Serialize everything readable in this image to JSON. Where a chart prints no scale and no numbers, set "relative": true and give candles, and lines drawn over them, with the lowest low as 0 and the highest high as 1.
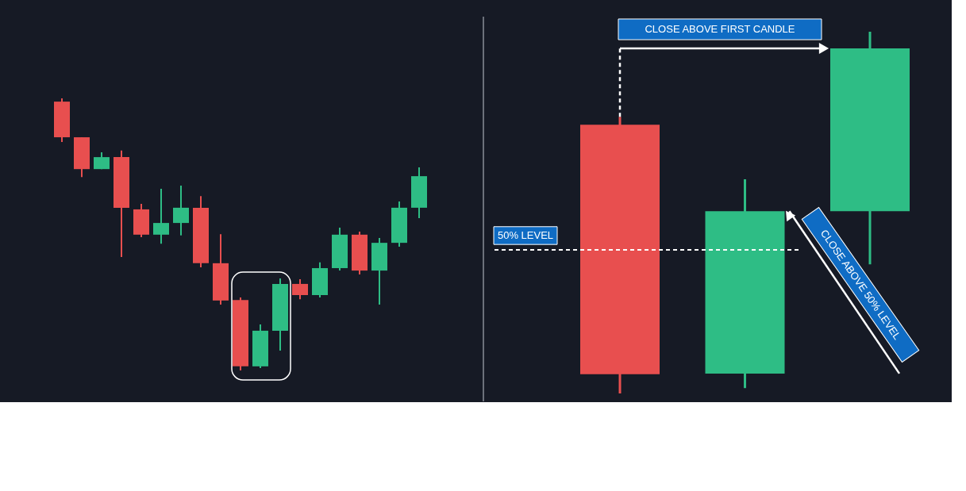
{
  "chart_data": [
    {
      "type": "candlestick",
      "relative": true,
      "categories": [
        null,
        null,
        null,
        null,
        null,
        null,
        null,
        null,
        null,
        null,
        null,
        null,
        null,
        null,
        null,
        null,
        null,
        null,
        null
      ],
      "ohlc": [
        [
          0.988,
          1,
          0.84,
          0.857
        ],
        [
          0.857,
          0.857,
          0.711,
          0.74
        ],
        [
          0.74,
          0.802,
          0.74,
          0.784
        ],
        [
          0.784,
          0.808,
          0.417,
          0.598
        ],
        [
          0.592,
          0.612,
          0.49,
          0.499
        ],
        [
          0.499,
          0.668,
          0.466,
          0.542
        ],
        [
          0.542,
          0.679,
          0.496,
          0.598
        ],
        [
          0.598,
          0.641,
          0.379,
          0.394
        ],
        [
          0.394,
          0.501,
          0.242,
          0.257
        ],
        [
          0.259,
          0.268,
          0,
          0.015
        ],
        [
          0.015,
          0.169,
          0.009,
          0.146
        ],
        [
          0.146,
          0.338,
          0.073,
          0.318
        ],
        [
          0.318,
          0.335,
          0.262,
          0.277
        ],
        [
          0.277,
          0.397,
          0.268,
          0.376
        ],
        [
          0.376,
          0.525,
          0.367,
          0.499
        ],
        [
          0.499,
          0.51,
          0.353,
          0.367
        ],
        [
          0.367,
          0.487,
          0.242,
          0.469
        ],
        [
          0.469,
          0.621,
          0.455,
          0.598
        ],
        [
          0.598,
          0.746,
          0.56,
          0.714
        ]
      ],
      "colors": [
        "#e84f4f",
        "#e84f4f",
        "#2ebd85",
        "#e84f4f",
        "#e84f4f",
        "#2ebd85",
        "#2ebd85",
        "#e84f4f",
        "#e84f4f",
        "#e84f4f",
        "#2ebd85",
        "#2ebd85",
        "#e84f4f",
        "#2ebd85",
        "#2ebd85",
        "#e84f4f",
        "#2ebd85",
        "#2ebd85",
        "#2ebd85"
      ]
    },
    {
      "type": "candlestick",
      "relative": true,
      "categories": [
        null,
        null,
        null
      ],
      "ohlc": [
        [
          0.743,
          0.765,
          0,
          0.053
        ],
        [
          0.055,
          0.592,
          0.015,
          0.504
        ],
        [
          0.504,
          1,
          0.357,
          0.954
        ]
      ],
      "colors": [
        "#e84f4f",
        "#2ebd85",
        "#2ebd85"
      ],
      "ref_lines": [
        {
          "axis": "y",
          "value": 0.397,
          "label": "50% LEVEL",
          "color": "#ffffff",
          "line_style": "dashed"
        }
      ],
      "annotations": [
        "CLOSE ABOVE FIRST CANDLE",
        "CLOSE ABOVE 50% LEVEL"
      ]
    }
  ]
}
